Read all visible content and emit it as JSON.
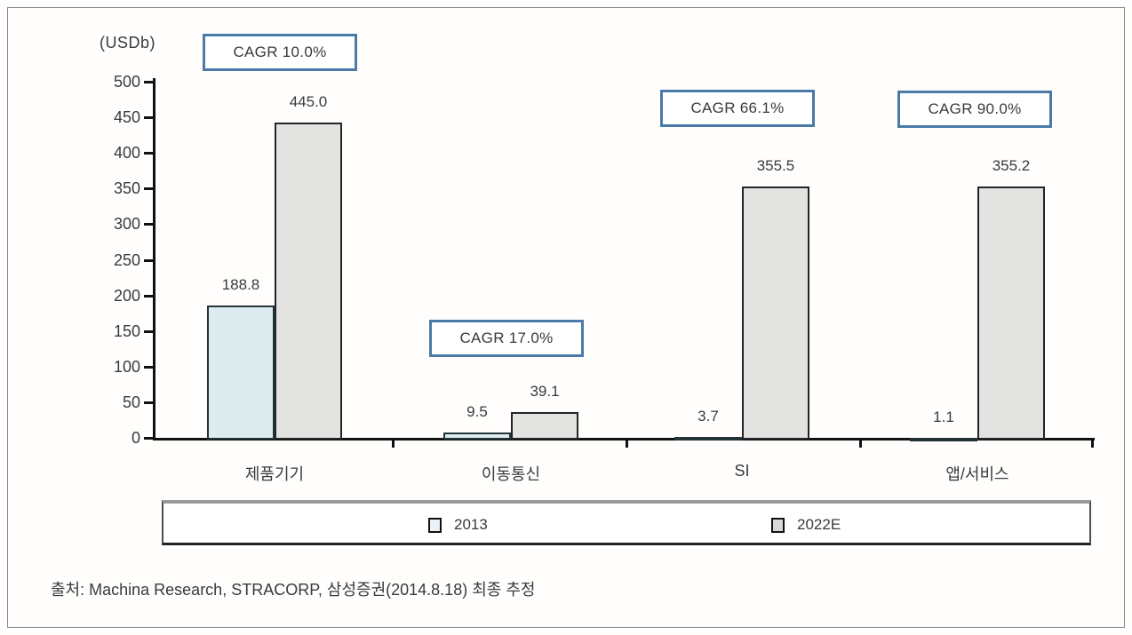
{
  "chart_data": {
    "type": "bar",
    "title": "",
    "unit_label": "(USDb)",
    "categories": [
      "제품기기",
      "이동통신",
      "SI",
      "앱/서비스"
    ],
    "series": [
      {
        "name": "2013",
        "color": "#dcecef",
        "values": [
          188.8,
          9.5,
          3.7,
          1.1
        ]
      },
      {
        "name": "2022E",
        "color": "#e3e3e1",
        "values": [
          445.0,
          39.1,
          355.5,
          355.2
        ]
      }
    ],
    "cagr_labels": [
      "CAGR 10.0%",
      "CAGR 17.0%",
      "CAGR 66.1%",
      "CAGR 90.0%"
    ],
    "ylim": [
      0,
      500
    ],
    "ytick_step": 50,
    "yticks": [
      "500",
      "450",
      "400",
      "350",
      "300",
      "250",
      "200",
      "150",
      "100",
      "50",
      "0"
    ],
    "grid": false,
    "legend_position": "bottom"
  },
  "legend": {
    "items": [
      {
        "label": "2013"
      },
      {
        "label": "2022E"
      }
    ]
  },
  "source_note": "출처: Machina Research, STRACORP, 삼성증권(2014.8.18) 최종 추정",
  "colors": {
    "bar_2013_fill": "#dcecef",
    "bar_2022e_fill": "#e3e3e1",
    "bar_border": "#1f1f1f",
    "cagr_box_border": "#4a7aa8",
    "axis": "#111111",
    "text": "#3a3a3a",
    "outer_frame_border": "#8a8a8a"
  }
}
